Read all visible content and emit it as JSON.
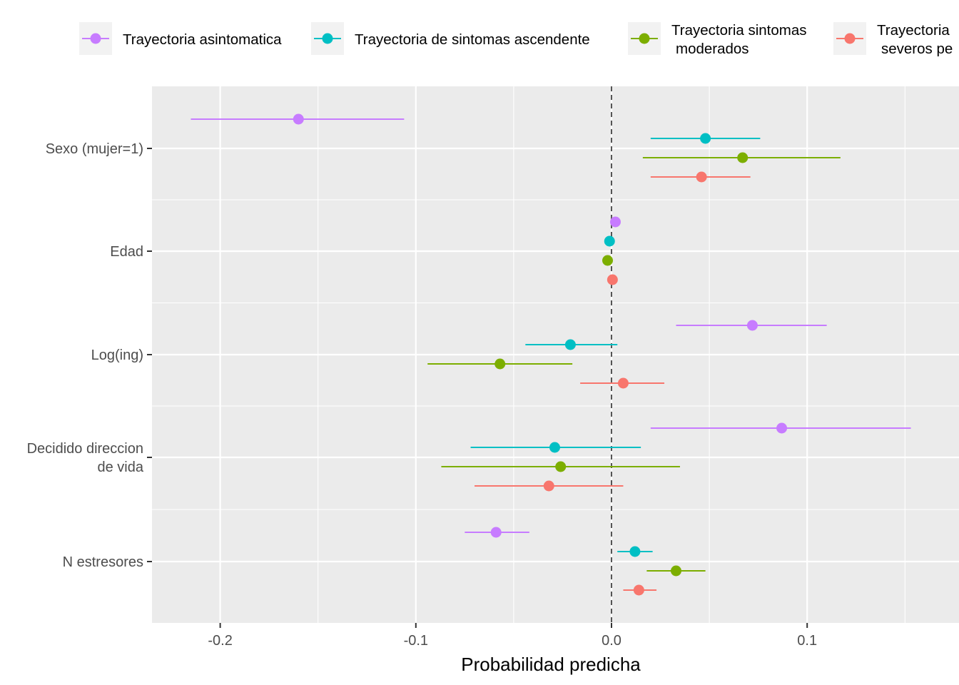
{
  "chart_data": {
    "type": "dot-and-whisker",
    "xlabel": "Probabilidad predicha",
    "xlim": [
      -0.235,
      0.172
    ],
    "x_ticks": [
      {
        "value": -0.2,
        "label": "-0.2"
      },
      {
        "value": -0.1,
        "label": "-0.1"
      },
      {
        "value": 0.0,
        "label": "0.0"
      },
      {
        "value": 0.1,
        "label": "0.1"
      }
    ],
    "reference_line": {
      "x": 0,
      "style": "dashed"
    },
    "grid": true,
    "legend_position": "top",
    "categories": [
      {
        "lines": [
          "Sexo (mujer=1)"
        ]
      },
      {
        "lines": [
          "Edad"
        ]
      },
      {
        "lines": [
          "Log(ing)"
        ]
      },
      {
        "lines": [
          "Decidido direccion",
          "de vida"
        ]
      },
      {
        "lines": [
          "N estresores"
        ]
      }
    ],
    "series": [
      {
        "name_lines": [
          "Trayectoria asintomatica"
        ],
        "color": "#C77CFF",
        "points": [
          {
            "estimate": -0.16,
            "low": -0.215,
            "high": -0.106
          },
          {
            "estimate": 0.002,
            "low": null,
            "high": null
          },
          {
            "estimate": 0.072,
            "low": 0.033,
            "high": 0.11
          },
          {
            "estimate": 0.087,
            "low": 0.02,
            "high": 0.153
          },
          {
            "estimate": -0.059,
            "low": -0.075,
            "high": -0.042
          }
        ]
      },
      {
        "name_lines": [
          "Trayectoria de sintomas ascendente"
        ],
        "color": "#00BFC4",
        "points": [
          {
            "estimate": 0.048,
            "low": 0.02,
            "high": 0.076
          },
          {
            "estimate": -0.001,
            "low": null,
            "high": null
          },
          {
            "estimate": -0.021,
            "low": -0.044,
            "high": 0.003
          },
          {
            "estimate": -0.029,
            "low": -0.072,
            "high": 0.015
          },
          {
            "estimate": 0.012,
            "low": 0.003,
            "high": 0.021
          }
        ]
      },
      {
        "name_lines": [
          "Trayectoria sintomas",
          "moderados"
        ],
        "color": "#7CAE00",
        "points": [
          {
            "estimate": 0.067,
            "low": 0.016,
            "high": 0.117
          },
          {
            "estimate": -0.002,
            "low": null,
            "high": null
          },
          {
            "estimate": -0.057,
            "low": -0.094,
            "high": -0.02
          },
          {
            "estimate": -0.026,
            "low": -0.087,
            "high": 0.035
          },
          {
            "estimate": 0.033,
            "low": 0.018,
            "high": 0.048
          }
        ]
      },
      {
        "name_lines": [
          "Trayectoria",
          "severos pe"
        ],
        "color": "#F8766D",
        "points": [
          {
            "estimate": 0.046,
            "low": 0.02,
            "high": 0.071
          },
          {
            "estimate": 0.0005,
            "low": null,
            "high": null
          },
          {
            "estimate": 0.006,
            "low": -0.016,
            "high": 0.027
          },
          {
            "estimate": -0.032,
            "low": -0.07,
            "high": 0.006
          },
          {
            "estimate": 0.014,
            "low": 0.006,
            "high": 0.023
          }
        ]
      }
    ]
  }
}
